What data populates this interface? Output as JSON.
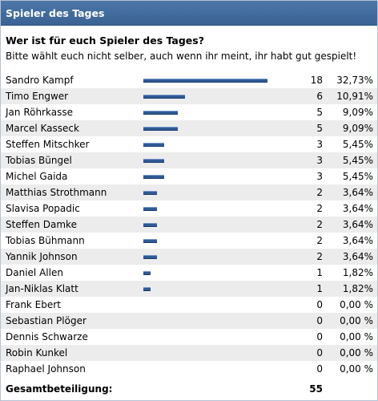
{
  "header": {
    "title": "Spieler des Tages"
  },
  "poll": {
    "question": "Wer ist für euch Spieler des Tages?",
    "hint": "Bitte wählt euch nicht selber, auch wenn ihr meint, ihr habt gut gespielt!",
    "bar_color": "#2f5a96",
    "options": [
      {
        "name": "Sandro Kampf",
        "votes": "18",
        "percent": "32,73%",
        "share": 0.3273
      },
      {
        "name": "Timo Engwer",
        "votes": "6",
        "percent": "10,91%",
        "share": 0.1091
      },
      {
        "name": "Jan Röhrkasse",
        "votes": "5",
        "percent": "9,09%",
        "share": 0.0909
      },
      {
        "name": "Marcel Kasseck",
        "votes": "5",
        "percent": "9,09%",
        "share": 0.0909
      },
      {
        "name": "Steffen Mitschker",
        "votes": "3",
        "percent": "5,45%",
        "share": 0.0545
      },
      {
        "name": "Tobias Büngel",
        "votes": "3",
        "percent": "5,45%",
        "share": 0.0545
      },
      {
        "name": "Michel Gaida",
        "votes": "3",
        "percent": "5,45%",
        "share": 0.0545
      },
      {
        "name": "Matthias Strothmann",
        "votes": "2",
        "percent": "3,64%",
        "share": 0.0364
      },
      {
        "name": "Slavisa Popadic",
        "votes": "2",
        "percent": "3,64%",
        "share": 0.0364
      },
      {
        "name": "Steffen Damke",
        "votes": "2",
        "percent": "3,64%",
        "share": 0.0364
      },
      {
        "name": "Tobias Bühmann",
        "votes": "2",
        "percent": "3,64%",
        "share": 0.0364
      },
      {
        "name": "Yannik Johnson",
        "votes": "2",
        "percent": "3,64%",
        "share": 0.0364
      },
      {
        "name": "Daniel Allen",
        "votes": "1",
        "percent": "1,82%",
        "share": 0.0182
      },
      {
        "name": "Jan-Niklas Klatt",
        "votes": "1",
        "percent": "1,82%",
        "share": 0.0182
      },
      {
        "name": "Frank Ebert",
        "votes": "0",
        "percent": "0,00 %",
        "share": 0
      },
      {
        "name": "Sebastian Plöger",
        "votes": "0",
        "percent": "0,00 %",
        "share": 0
      },
      {
        "name": "Dennis Schwarze",
        "votes": "0",
        "percent": "0,00 %",
        "share": 0
      },
      {
        "name": "Robin Kunkel",
        "votes": "0",
        "percent": "0,00 %",
        "share": 0
      },
      {
        "name": "Raphael Johnson",
        "votes": "0",
        "percent": "0,00 %",
        "share": 0
      }
    ],
    "total_label": "Gesamtbeteiligung:",
    "total_value": "55"
  }
}
